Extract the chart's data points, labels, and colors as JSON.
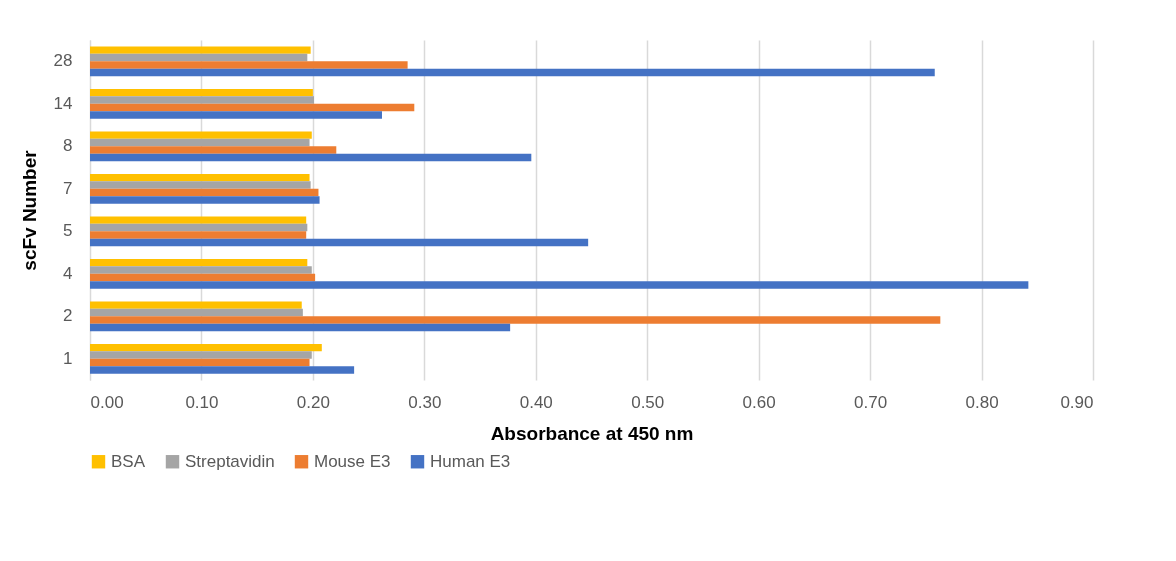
{
  "chart_data": {
    "type": "bar",
    "orientation": "horizontal",
    "xlabel": "Absorbance at 450 nm",
    "ylabel": "scFv Number",
    "categories": [
      "28",
      "14",
      "8",
      "7",
      "5",
      "4",
      "2",
      "1"
    ],
    "series": [
      {
        "name": "BSA",
        "color": "#ffc000",
        "values": [
          0.198,
          0.2,
          0.199,
          0.197,
          0.194,
          0.195,
          0.19,
          0.208
        ]
      },
      {
        "name": "Streptavidin",
        "color": "#a5a5a5",
        "values": [
          0.195,
          0.201,
          0.197,
          0.198,
          0.195,
          0.199,
          0.191,
          0.199
        ]
      },
      {
        "name": "Mouse E3",
        "color": "#ed7d31",
        "values": [
          0.285,
          0.291,
          0.221,
          0.205,
          0.194,
          0.202,
          0.763,
          0.197
        ]
      },
      {
        "name": "Human E3",
        "color": "#4472c4",
        "values": [
          0.758,
          0.262,
          0.396,
          0.206,
          0.447,
          0.842,
          0.377,
          0.237
        ]
      }
    ],
    "xlim": [
      0,
      0.9
    ],
    "xticks": [
      {
        "value": 0,
        "label": "0.00"
      },
      {
        "value": 0.1,
        "label": "0.10"
      },
      {
        "value": 0.2,
        "label": "0.20"
      },
      {
        "value": 0.3,
        "label": "0.30"
      },
      {
        "value": 0.4,
        "label": "0.40"
      },
      {
        "value": 0.5,
        "label": "0.50"
      },
      {
        "value": 0.6,
        "label": "0.60"
      },
      {
        "value": 0.7,
        "label": "0.70"
      },
      {
        "value": 0.8,
        "label": "0.80"
      },
      {
        "value": 0.9,
        "label": "0.90"
      }
    ],
    "grid": "x",
    "legend": "bottom"
  }
}
